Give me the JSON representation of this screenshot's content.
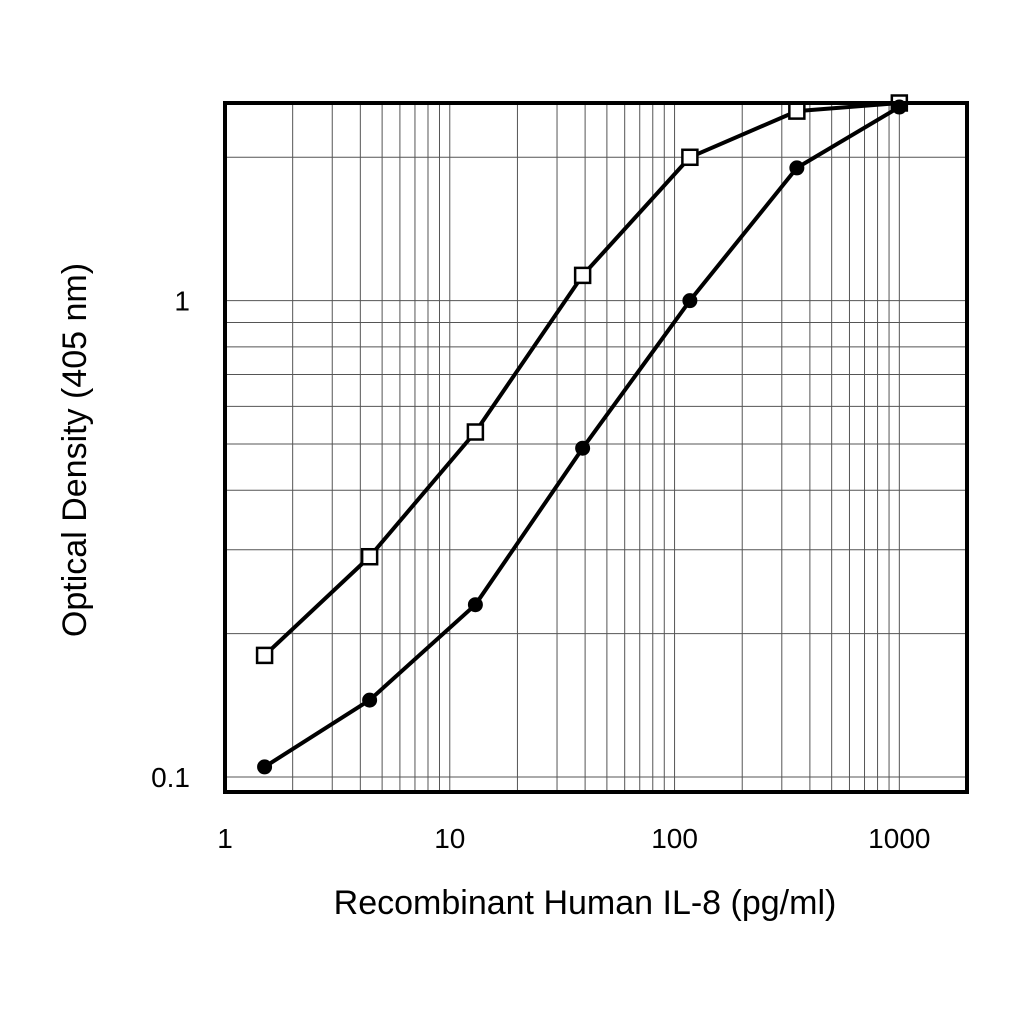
{
  "chart_data": {
    "type": "line",
    "title": "",
    "xlabel": "Recombinant Human IL-8 (pg/ml)",
    "ylabel": "Optical Density (405 nm)",
    "x_scale": "log",
    "y_scale": "log",
    "xlim": [
      1,
      2000
    ],
    "ylim": [
      0.093,
      2.6
    ],
    "x_ticks": [
      {
        "value": 1,
        "label": "1"
      },
      {
        "value": 10,
        "label": "10"
      },
      {
        "value": 100,
        "label": "100"
      },
      {
        "value": 1000,
        "label": "1000"
      }
    ],
    "y_ticks": [
      {
        "value": 0.1,
        "label": "0.1"
      },
      {
        "value": 1,
        "label": "1"
      }
    ],
    "grid": true,
    "legend": "none",
    "colors": {
      "line": "#000000",
      "grid": "#555555",
      "open_marker_fill": "#ffffff",
      "filled_marker_fill": "#000000"
    },
    "series": [
      {
        "marker": "open-square",
        "x": [
          1.5,
          4.4,
          13,
          39,
          117,
          350,
          1000
        ],
        "y": [
          0.18,
          0.29,
          0.53,
          1.13,
          2.0,
          2.5,
          2.6
        ]
      },
      {
        "marker": "filled-circle",
        "x": [
          1.5,
          4.4,
          13,
          39,
          117,
          350,
          1000
        ],
        "y": [
          0.105,
          0.145,
          0.23,
          0.49,
          1.0,
          1.9,
          2.55
        ]
      }
    ]
  }
}
